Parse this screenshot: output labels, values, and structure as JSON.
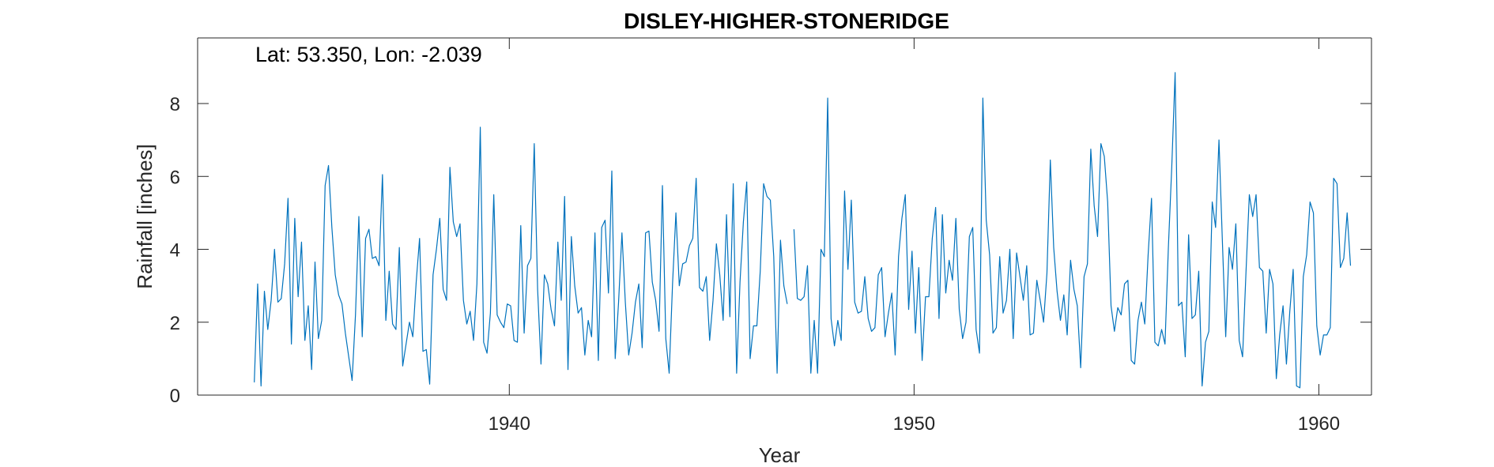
{
  "chart_data": {
    "type": "line",
    "title": "DISLEY-HIGHER-STONERIDGE",
    "annotation": "Lat: 53.350, Lon: -2.039",
    "xlabel": "Year",
    "ylabel": "Rainfall [inches]",
    "xlim": [
      1932.3,
      1961.3
    ],
    "ylim": [
      0,
      9.8
    ],
    "xticks": [
      1940,
      1950,
      1960
    ],
    "xtick_labels": [
      "1940",
      "1950",
      "1960"
    ],
    "yticks": [
      0,
      2,
      4,
      6,
      8
    ],
    "ytick_labels": [
      "0",
      "2",
      "4",
      "6",
      "8"
    ],
    "grid": false,
    "series_color": "#0072BD",
    "x_start": 1933.7,
    "x_step": 0.08333,
    "series": [
      {
        "values": [
          0.35,
          3.05,
          0.25,
          2.85,
          1.8,
          2.6,
          4.0,
          2.55,
          2.65,
          3.6,
          5.4,
          1.4,
          4.85,
          2.7,
          4.2,
          1.5,
          2.45,
          0.7,
          3.65,
          1.55,
          2.05,
          5.75,
          6.3,
          4.6,
          3.3,
          2.75,
          2.5,
          1.7,
          1.05,
          0.4,
          2.2,
          4.9,
          1.6,
          4.3,
          4.55,
          3.75,
          3.8,
          3.55,
          6.05,
          2.05,
          3.4,
          1.95,
          1.8,
          4.05,
          0.8,
          1.4,
          2.0,
          1.6,
          3.1,
          4.3,
          1.2,
          1.25,
          0.3,
          3.3,
          4.0,
          4.85,
          2.9,
          2.6,
          6.25,
          4.75,
          4.35,
          4.7,
          2.6,
          1.95,
          2.3,
          1.5,
          3.05,
          7.35,
          1.45,
          1.15,
          2.25,
          5.5,
          2.2,
          2.0,
          1.85,
          2.5,
          2.45,
          1.5,
          1.45,
          4.65,
          1.7,
          3.55,
          3.75,
          6.9,
          2.9,
          0.85,
          3.3,
          3.05,
          2.35,
          1.9,
          4.2,
          2.6,
          5.45,
          0.7,
          4.35,
          3.0,
          2.25,
          2.4,
          1.1,
          2.05,
          1.6,
          4.45,
          0.95,
          4.6,
          4.8,
          2.8,
          6.15,
          1.0,
          2.55,
          4.45,
          2.55,
          1.1,
          1.7,
          2.55,
          3.05,
          1.3,
          4.45,
          4.5,
          3.1,
          2.6,
          1.75,
          5.75,
          1.55,
          0.6,
          3.05,
          5.0,
          3.0,
          3.6,
          3.65,
          4.1,
          4.3,
          5.95,
          2.95,
          2.85,
          3.25,
          1.5,
          2.6,
          4.15,
          3.3,
          2.05,
          4.95,
          2.15,
          5.8,
          0.6,
          3.1,
          4.75,
          5.85,
          1.0,
          1.9,
          1.9,
          3.4,
          5.8,
          5.45,
          5.35,
          3.8,
          0.6,
          4.25,
          3.0,
          2.5,
          null,
          4.55,
          2.65,
          2.6,
          2.7,
          3.55,
          0.6,
          2.05,
          0.6,
          4.0,
          3.8,
          8.15,
          2.1,
          1.35,
          2.05,
          1.5,
          5.6,
          3.45,
          5.35,
          2.55,
          2.25,
          2.3,
          3.25,
          2.1,
          1.75,
          1.85,
          3.3,
          3.5,
          1.6,
          2.25,
          2.8,
          1.1,
          3.8,
          4.85,
          5.5,
          2.35,
          3.95,
          1.7,
          3.5,
          0.95,
          2.7,
          2.7,
          4.3,
          5.15,
          2.1,
          4.95,
          2.8,
          3.7,
          3.15,
          4.85,
          2.35,
          1.55,
          2.0,
          4.35,
          4.6,
          1.8,
          1.15,
          8.15,
          4.8,
          3.85,
          1.7,
          1.85,
          3.8,
          2.25,
          2.6,
          4.0,
          1.55,
          3.9,
          3.25,
          2.6,
          3.55,
          1.65,
          1.7,
          3.15,
          2.6,
          2.0,
          3.35,
          6.45,
          4.05,
          2.85,
          2.05,
          2.75,
          1.65,
          3.7,
          2.9,
          2.45,
          0.75,
          3.25,
          3.6,
          6.75,
          5.2,
          4.35,
          6.9,
          6.55,
          5.3,
          2.45,
          1.75,
          2.4,
          2.2,
          3.05,
          3.15,
          0.95,
          0.85,
          2.05,
          2.55,
          1.95,
          3.85,
          5.4,
          1.45,
          1.35,
          1.8,
          1.4,
          4.05,
          6.25,
          8.85,
          2.45,
          2.55,
          1.05,
          4.4,
          2.1,
          2.2,
          3.4,
          0.25,
          1.45,
          1.75,
          5.3,
          4.6,
          7.0,
          4.25,
          1.6,
          4.05,
          3.45,
          4.7,
          1.5,
          1.05,
          3.35,
          5.5,
          4.9,
          5.5,
          3.5,
          3.4,
          1.7,
          3.45,
          3.05,
          0.45,
          1.65,
          2.45,
          0.85,
          2.3,
          3.45,
          0.25,
          0.2,
          3.25,
          3.85,
          5.3,
          5.0,
          1.9,
          1.1,
          1.65,
          1.65,
          1.85,
          5.95,
          5.8,
          3.5,
          3.75,
          5.0,
          3.55
        ]
      }
    ]
  }
}
